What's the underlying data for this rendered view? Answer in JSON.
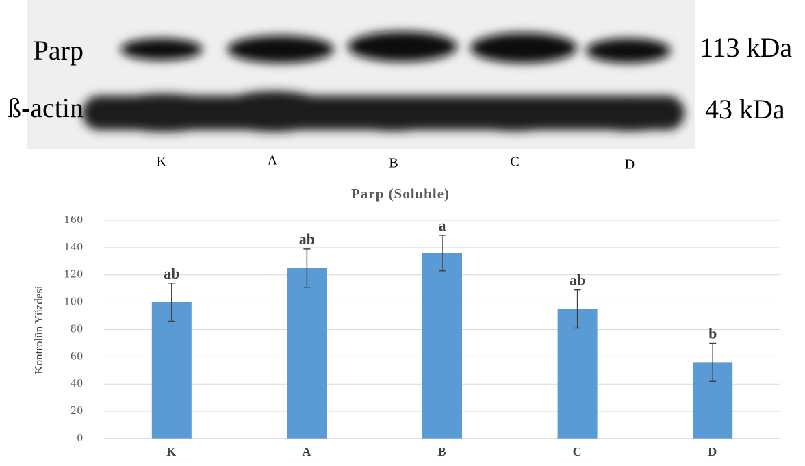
{
  "blot": {
    "rows": [
      {
        "label": "Parp",
        "size": "113 kDa"
      },
      {
        "label": "ß-actin",
        "size": "43 kDa"
      }
    ],
    "lanes": [
      "K",
      "A",
      "B",
      "C",
      "D"
    ]
  },
  "chart_data": {
    "type": "bar",
    "title": "Parp (Soluble)",
    "y_label": "Kontrolün Yüzdesi",
    "categories": [
      "K",
      "A",
      "B",
      "C",
      "D"
    ],
    "values": [
      100,
      125,
      136,
      95,
      56
    ],
    "errors": [
      14,
      14,
      13,
      14,
      14
    ],
    "letters": [
      "ab",
      "ab",
      "a",
      "ab",
      "b"
    ],
    "color": "#5b9bd5",
    "ylim": [
      0,
      160
    ],
    "yticks": [
      0,
      20,
      40,
      60,
      80,
      100,
      120,
      140,
      160
    ],
    "grid": true
  }
}
